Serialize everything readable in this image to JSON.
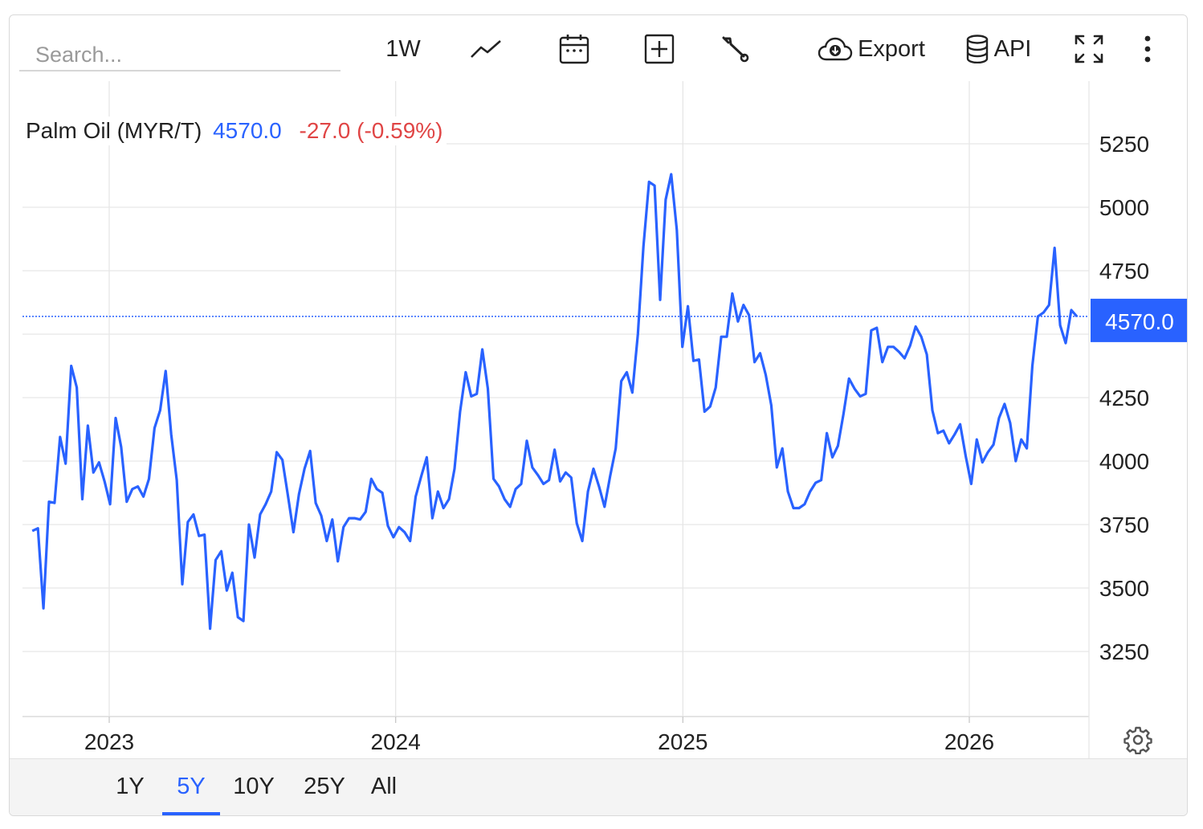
{
  "toolbar": {
    "search_placeholder": "Search...",
    "interval_label": "1W",
    "export_label": "Export",
    "api_label": "API"
  },
  "legend": {
    "name": "Palm Oil (MYR/T)",
    "price": "4570.0",
    "change": "-27.0 (-0.59%)"
  },
  "current_price_tag": "4570.0",
  "ranges": [
    {
      "label": "1Y",
      "active": false
    },
    {
      "label": "5Y",
      "active": true
    },
    {
      "label": "10Y",
      "active": false
    },
    {
      "label": "25Y",
      "active": false
    },
    {
      "label": "All",
      "active": false
    }
  ],
  "colors": {
    "line": "#2962ff",
    "accent": "#2962ff",
    "negative": "#e04545",
    "grid": "#e6e6e6"
  },
  "chart_data": {
    "type": "line",
    "title": "Palm Oil (MYR/T)",
    "xlabel": "",
    "ylabel": "",
    "ylim": [
      3000,
      5500
    ],
    "xlim": [
      "2022-09-25",
      "2026-05-18"
    ],
    "yticks": [
      3250,
      3500,
      3750,
      4000,
      4250,
      4500,
      4750,
      5000,
      5250
    ],
    "ytick_labels": [
      "3250",
      "3500",
      "3750",
      "4000",
      "4250",
      "",
      "4750",
      "5000",
      "5250"
    ],
    "xticks": [
      "2023-01-01",
      "2024-01-01",
      "2025-01-01",
      "2026-01-01"
    ],
    "xtick_labels": [
      "2023",
      "2024",
      "2025",
      "2026"
    ],
    "grid": true,
    "last_value": 4570.0,
    "series": [
      {
        "values": [
          3725,
          3735,
          3420,
          3840,
          3835,
          4095,
          3990,
          4375,
          4290,
          3850,
          4140,
          3955,
          3995,
          3920,
          3830,
          4170,
          4055,
          3840,
          3890,
          3900,
          3860,
          3930,
          4130,
          4200,
          4355,
          4105,
          3925,
          3515,
          3760,
          3790,
          3705,
          3710,
          3340,
          3610,
          3645,
          3490,
          3560,
          3385,
          3370,
          3750,
          3620,
          3790,
          3830,
          3880,
          4035,
          4005,
          3865,
          3720,
          3870,
          3970,
          4040,
          3835,
          3785,
          3685,
          3770,
          3605,
          3740,
          3775,
          3775,
          3770,
          3800,
          3930,
          3890,
          3875,
          3745,
          3700,
          3740,
          3720,
          3685,
          3860,
          3940,
          4015,
          3775,
          3880,
          3815,
          3850,
          3970,
          4195,
          4350,
          4255,
          4265,
          4440,
          4285,
          3930,
          3900,
          3850,
          3820,
          3890,
          3910,
          4080,
          3975,
          3945,
          3910,
          3925,
          4045,
          3920,
          3955,
          3935,
          3755,
          3685,
          3880,
          3970,
          3900,
          3820,
          3940,
          4050,
          4315,
          4350,
          4270,
          4500,
          4845,
          5100,
          5085,
          4635,
          5030,
          5130,
          4910,
          4450,
          4610,
          4395,
          4400,
          4195,
          4215,
          4290,
          4490,
          4490,
          4660,
          4550,
          4615,
          4575,
          4390,
          4425,
          4340,
          4220,
          3975,
          4050,
          3880,
          3815,
          3815,
          3830,
          3880,
          3915,
          3925,
          4110,
          4015,
          4060,
          4185,
          4325,
          4285,
          4255,
          4265,
          4515,
          4525,
          4390,
          4450,
          4450,
          4430,
          4405,
          4455,
          4530,
          4490,
          4420,
          4200,
          4110,
          4120,
          4070,
          4105,
          4145,
          4020,
          3910,
          4085,
          3995,
          4035,
          4065,
          4170,
          4225,
          4150,
          4000,
          4085,
          4050,
          4375,
          4570,
          4585,
          4615,
          4840,
          4535,
          4465,
          4595,
          4570
        ]
      }
    ]
  }
}
